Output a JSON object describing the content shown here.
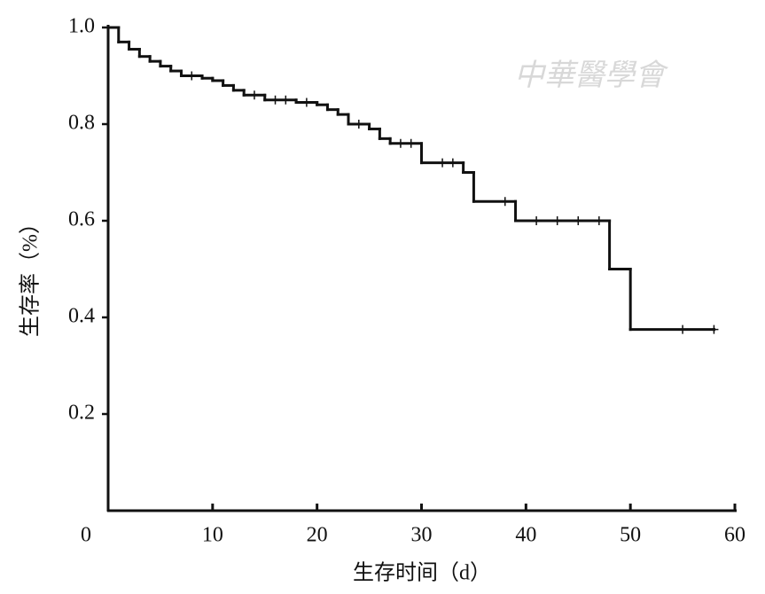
{
  "chart_data": {
    "type": "step",
    "xlabel": "生存时间（d）",
    "ylabel": "生存率（%）",
    "watermark": "中華醫學會",
    "x": [
      0,
      1,
      2,
      3,
      4,
      5,
      6,
      7,
      9,
      10,
      11,
      12,
      13,
      15,
      18,
      20,
      21,
      22,
      23,
      25,
      26,
      27,
      30,
      34,
      35,
      39,
      48,
      50,
      58
    ],
    "values": [
      1.0,
      0.97,
      0.955,
      0.94,
      0.93,
      0.92,
      0.91,
      0.9,
      0.895,
      0.89,
      0.88,
      0.87,
      0.86,
      0.85,
      0.845,
      0.84,
      0.83,
      0.82,
      0.8,
      0.79,
      0.77,
      0.76,
      0.72,
      0.7,
      0.64,
      0.6,
      0.5,
      0.375,
      0.375
    ],
    "censored": {
      "x": [
        8,
        14,
        16,
        17,
        19,
        24,
        28,
        29,
        32,
        33,
        38,
        41,
        43,
        45,
        47,
        55,
        58
      ],
      "values": [
        0.9,
        0.86,
        0.85,
        0.85,
        0.845,
        0.8,
        0.76,
        0.76,
        0.72,
        0.72,
        0.64,
        0.6,
        0.6,
        0.6,
        0.6,
        0.375,
        0.375
      ]
    },
    "color": "#111111",
    "xlim": [
      0,
      60
    ],
    "ylim": [
      0,
      1
    ],
    "xticks": [
      0,
      10,
      20,
      30,
      40,
      50,
      60
    ],
    "yticks": [
      0.2,
      0.4,
      0.6,
      0.8,
      {
        "value": 1,
        "label": "1.0"
      }
    ]
  }
}
